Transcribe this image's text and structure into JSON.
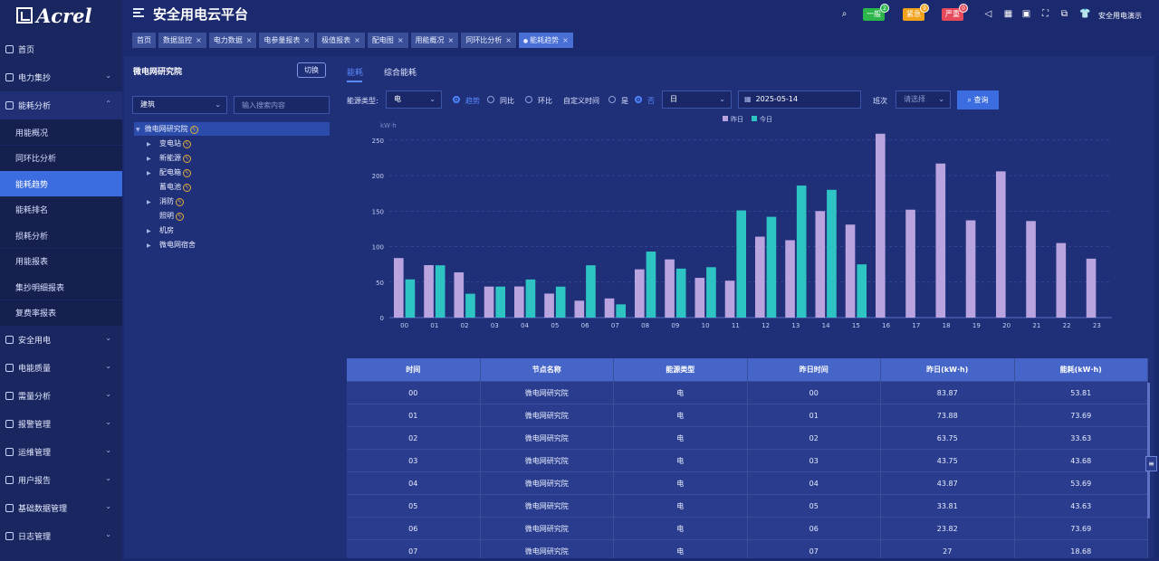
{
  "brand": {
    "logo_text": "Acrel"
  },
  "app_title": "安全用电云平台",
  "alerts": [
    {
      "label": "一般",
      "count": "2",
      "color": "#2bb54a"
    },
    {
      "label": "紧急",
      "count": "9",
      "color": "#f0a21b"
    },
    {
      "label": "严重",
      "count": "0",
      "color": "#e64a5a"
    }
  ],
  "user": {
    "name": "安全用电演示"
  },
  "sidebar": {
    "top": {
      "label": "首页"
    },
    "power": {
      "label": "电力集抄"
    },
    "energy": {
      "label": "能耗分析"
    },
    "sub_items": [
      "用能概况",
      "同环比分析",
      "能耗趋势",
      "能耗排名",
      "损耗分析",
      "用能报表",
      "集抄明细报表",
      "复费率报表"
    ],
    "active_sub": "能耗趋势",
    "rest": [
      "安全用电",
      "电能质量",
      "需量分析",
      "报警管理",
      "运维管理",
      "用户报告",
      "基础数据管理",
      "日志管理"
    ]
  },
  "tabs": [
    {
      "label": "首页",
      "closable": false
    },
    {
      "label": "数据监控",
      "closable": true
    },
    {
      "label": "电力数据",
      "closable": true
    },
    {
      "label": "电参量报表",
      "closable": true
    },
    {
      "label": "极值报表",
      "closable": true
    },
    {
      "label": "配电图",
      "closable": true
    },
    {
      "label": "用能概况",
      "closable": true
    },
    {
      "label": "同环比分析",
      "closable": true
    },
    {
      "label": "能耗趋势",
      "closable": true,
      "active": true
    }
  ],
  "tree_panel": {
    "title": "微电网研究院",
    "switch_label": "切换",
    "building_select": "建筑",
    "search_placeholder": "输入搜索内容",
    "root": "微电网研究院",
    "nodes": [
      {
        "label": "变电站",
        "expandable": true,
        "bolt": true
      },
      {
        "label": "新能源",
        "expandable": true,
        "bolt": true
      },
      {
        "label": "配电箱",
        "expandable": true,
        "bolt": true
      },
      {
        "label": "蓄电池",
        "expandable": false,
        "bolt": true
      },
      {
        "label": "消防",
        "expandable": true,
        "bolt": true
      },
      {
        "label": "照明",
        "expandable": false,
        "bolt": true
      },
      {
        "label": "机房",
        "expandable": true,
        "bolt": false
      },
      {
        "label": "微电网宿舍",
        "expandable": true,
        "bolt": false
      }
    ]
  },
  "main_tabs": [
    {
      "label": "能耗",
      "active": true
    },
    {
      "label": "综合能耗",
      "active": false
    }
  ],
  "filters": {
    "energy_type_label": "能源类型:",
    "energy_type_value": "电",
    "mode_options": [
      {
        "label": "趋势",
        "checked": true
      },
      {
        "label": "同比",
        "checked": false
      },
      {
        "label": "环比",
        "checked": false
      }
    ],
    "custom_time_label": "自定义时间",
    "custom_options": [
      {
        "label": "是",
        "checked": false
      },
      {
        "label": "否",
        "checked": true
      }
    ],
    "period_value": "日",
    "date_value": "2025-05-14",
    "shift_label": "班次",
    "shift_placeholder": "请选择",
    "query_label": "查询"
  },
  "chart_data": {
    "type": "bar",
    "ylabel": "kW·h",
    "ylim": [
      0,
      260
    ],
    "yticks": [
      0,
      50,
      100,
      150,
      200,
      250
    ],
    "grid": true,
    "legend_position": "top-center",
    "categories": [
      "00",
      "01",
      "02",
      "03",
      "04",
      "05",
      "06",
      "07",
      "08",
      "09",
      "10",
      "11",
      "12",
      "13",
      "14",
      "15",
      "16",
      "17",
      "18",
      "19",
      "20",
      "21",
      "22",
      "23"
    ],
    "series": [
      {
        "name": "昨日",
        "color": "#b9a4e0",
        "values": [
          83.87,
          73.88,
          63.75,
          43.75,
          43.87,
          33.81,
          23.82,
          27,
          68,
          82,
          56,
          52,
          114,
          109,
          150,
          131,
          259,
          152,
          217,
          137,
          206,
          136,
          105,
          83
        ]
      },
      {
        "name": "今日",
        "color": "#2ec4c4",
        "values": [
          53.81,
          73.69,
          33.63,
          43.68,
          53.69,
          43.63,
          73.69,
          18.68,
          93,
          69,
          71,
          151,
          142,
          186,
          180,
          75,
          null,
          null,
          null,
          null,
          null,
          null,
          null,
          null
        ]
      }
    ]
  },
  "table": {
    "columns": [
      "时间",
      "节点名称",
      "能源类型",
      "昨日时间",
      "昨日(kW·h)",
      "能耗(kW·h)"
    ],
    "rows": [
      [
        "00",
        "微电网研究院",
        "电",
        "00",
        "83.87",
        "53.81"
      ],
      [
        "01",
        "微电网研究院",
        "电",
        "01",
        "73.88",
        "73.69"
      ],
      [
        "02",
        "微电网研究院",
        "电",
        "02",
        "63.75",
        "33.63"
      ],
      [
        "03",
        "微电网研究院",
        "电",
        "03",
        "43.75",
        "43.68"
      ],
      [
        "04",
        "微电网研究院",
        "电",
        "04",
        "43.87",
        "53.69"
      ],
      [
        "05",
        "微电网研究院",
        "电",
        "05",
        "33.81",
        "43.63"
      ],
      [
        "06",
        "微电网研究院",
        "电",
        "06",
        "23.82",
        "73.69"
      ],
      [
        "07",
        "微电网研究院",
        "电",
        "07",
        "27",
        "18.68"
      ]
    ]
  }
}
